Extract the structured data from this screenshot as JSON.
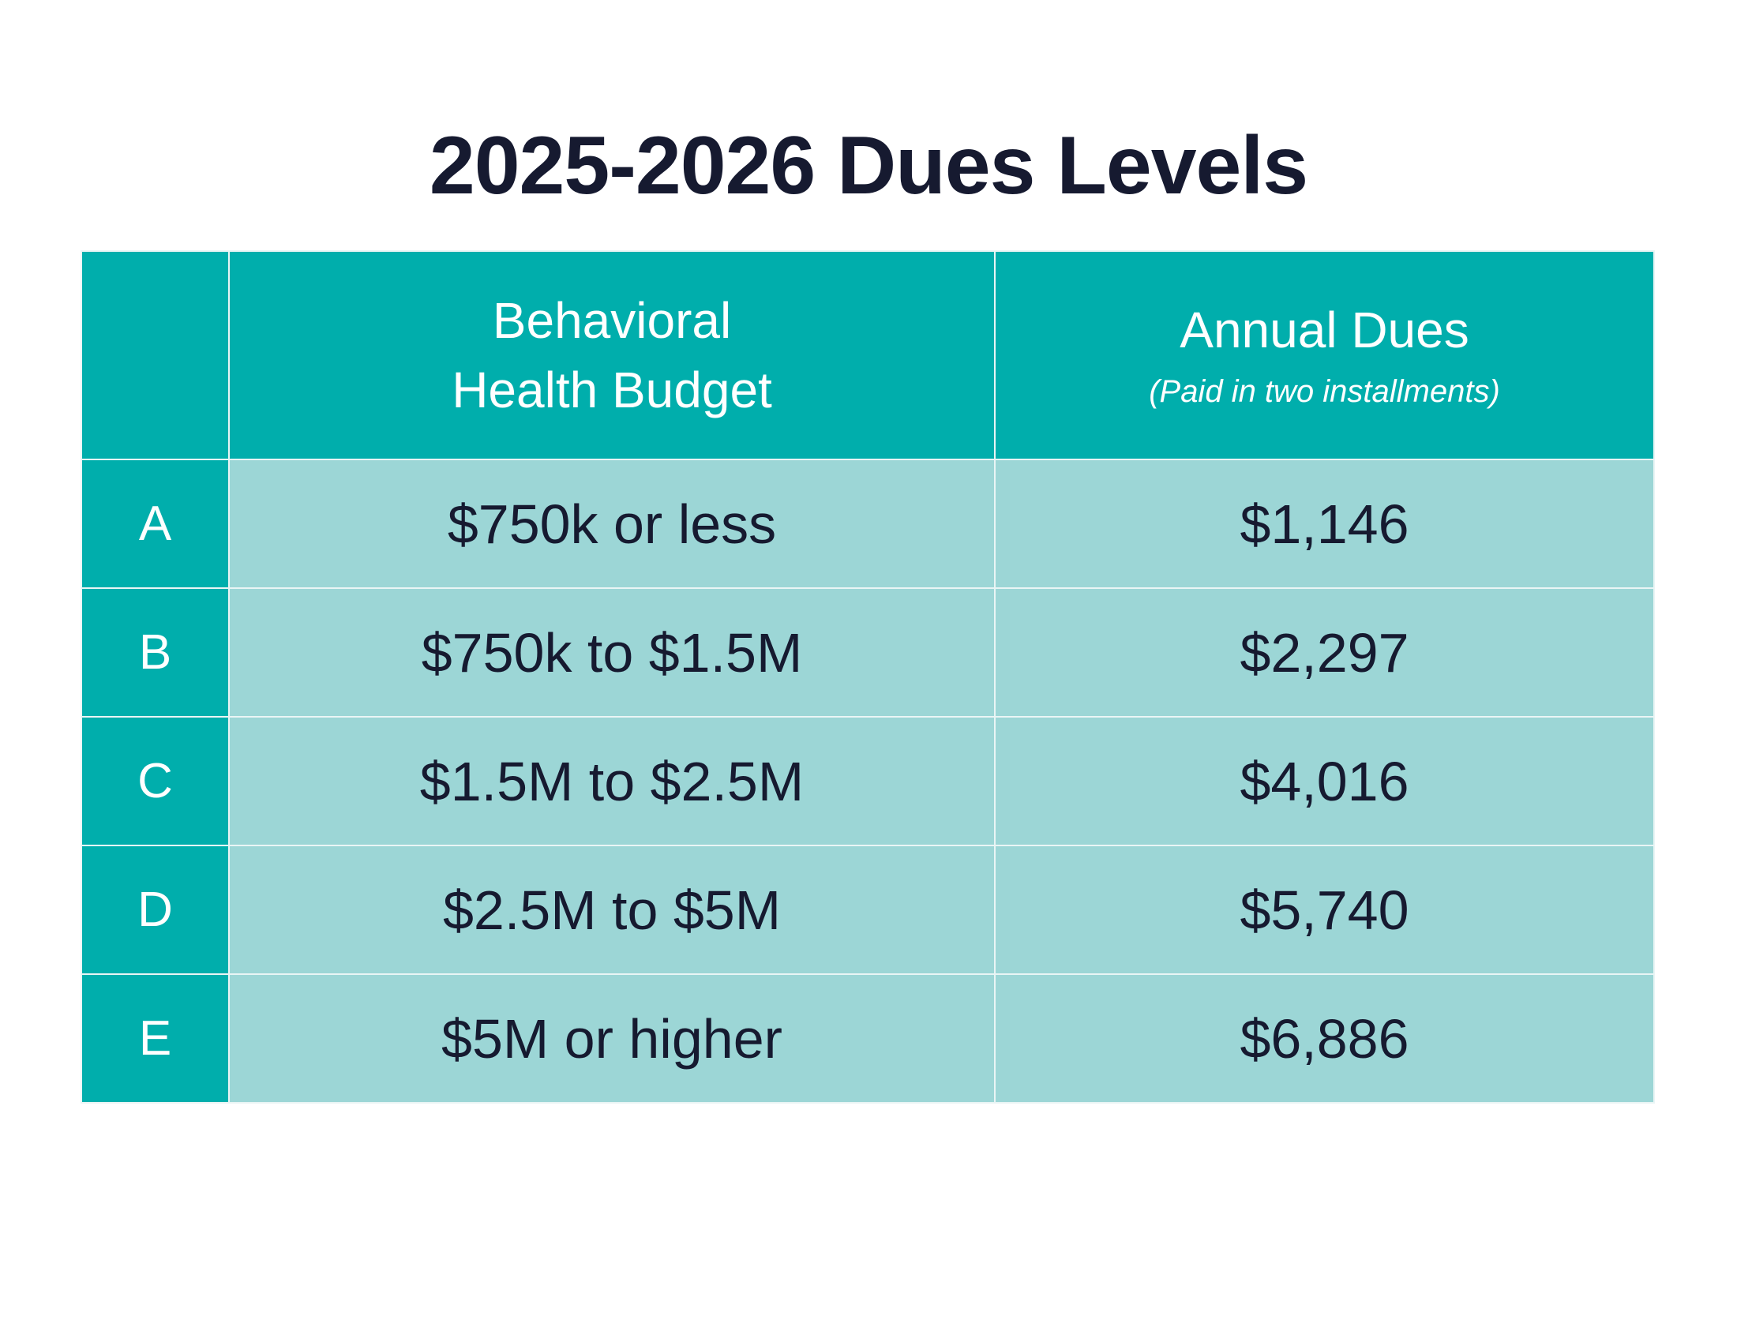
{
  "title": "2025-2026 Dues Levels",
  "table": {
    "headers": {
      "letter": "",
      "budget": "Behavioral Health Budget",
      "dues": "Annual Dues",
      "dues_note": "(Paid in two installments)"
    },
    "rows": [
      {
        "level": "A",
        "budget": "$750k or less",
        "dues": "$1,146"
      },
      {
        "level": "B",
        "budget": "$750k to $1.5M",
        "dues": "$2,297"
      },
      {
        "level": "C",
        "budget": "$1.5M to $2.5M",
        "dues": "$4,016"
      },
      {
        "level": "D",
        "budget": "$2.5M to $5M",
        "dues": "$5,740"
      },
      {
        "level": "E",
        "budget": "$5M or higher",
        "dues": "$6,886"
      }
    ]
  },
  "colors": {
    "header_teal": "#00aeac",
    "row_light_teal": "#9cd6d6",
    "title_navy": "#161a30"
  }
}
